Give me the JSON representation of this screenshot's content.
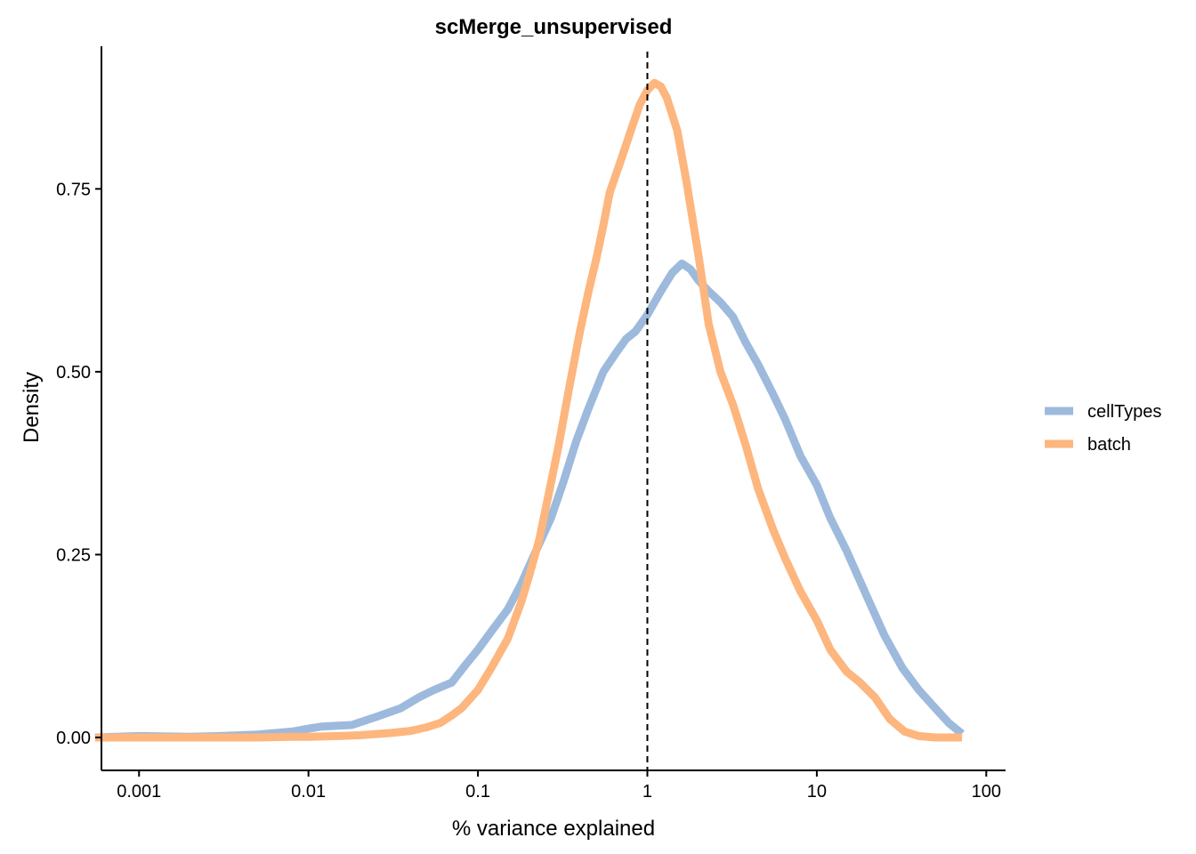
{
  "chart_data": {
    "type": "line",
    "title": "scMerge_unsupervised",
    "xlabel": "% variance explained",
    "ylabel": "Density",
    "x_scale": "log10",
    "xlim": [
      0.0006,
      130
    ],
    "ylim": [
      -0.045,
      0.945
    ],
    "x_ticks": [
      0.001,
      0.01,
      0.1,
      1,
      10,
      100
    ],
    "x_tick_labels": [
      "0.001",
      "0.01",
      "0.1",
      "1",
      "10",
      "100"
    ],
    "y_ticks": [
      0,
      0.25,
      0.5,
      0.75
    ],
    "y_tick_labels": [
      "0.00",
      "0.25",
      "0.50",
      "0.75"
    ],
    "reference_line": {
      "x": 1,
      "style": "dashed"
    },
    "grid": false,
    "legend_position": "right",
    "series": [
      {
        "name": "cellTypes",
        "color": "#9dbadc",
        "x": [
          0.00055,
          0.001,
          0.002,
          0.003,
          0.005,
          0.008,
          0.01,
          0.012,
          0.018,
          0.025,
          0.035,
          0.045,
          0.055,
          0.07,
          0.085,
          0.1,
          0.12,
          0.15,
          0.18,
          0.22,
          0.27,
          0.32,
          0.38,
          0.45,
          0.55,
          0.65,
          0.75,
          0.85,
          1.0,
          1.2,
          1.4,
          1.6,
          1.8,
          2.0,
          2.3,
          2.7,
          3.2,
          3.8,
          4.5,
          5.5,
          6.5,
          8.0,
          10.0,
          12.0,
          15.0,
          20.0,
          25.0,
          32.0,
          40.0,
          50.0,
          60.0,
          72.0
        ],
        "values": [
          0.0,
          0.002,
          0.001,
          0.002,
          0.004,
          0.008,
          0.012,
          0.015,
          0.017,
          0.028,
          0.04,
          0.055,
          0.065,
          0.075,
          0.1,
          0.12,
          0.145,
          0.175,
          0.21,
          0.255,
          0.3,
          0.35,
          0.405,
          0.45,
          0.5,
          0.525,
          0.545,
          0.555,
          0.578,
          0.61,
          0.635,
          0.648,
          0.64,
          0.625,
          0.61,
          0.595,
          0.575,
          0.54,
          0.51,
          0.47,
          0.435,
          0.385,
          0.345,
          0.3,
          0.255,
          0.19,
          0.14,
          0.095,
          0.065,
          0.04,
          0.02,
          0.005
        ]
      },
      {
        "name": "batch",
        "color": "#fdb67e",
        "x": [
          0.00055,
          0.001,
          0.003,
          0.005,
          0.008,
          0.01,
          0.015,
          0.02,
          0.03,
          0.04,
          0.05,
          0.06,
          0.07,
          0.08,
          0.1,
          0.12,
          0.15,
          0.18,
          0.2,
          0.23,
          0.26,
          0.3,
          0.35,
          0.4,
          0.45,
          0.5,
          0.55,
          0.6,
          0.7,
          0.8,
          0.9,
          1.0,
          1.1,
          1.2,
          1.3,
          1.5,
          1.7,
          2.0,
          2.3,
          2.7,
          3.2,
          3.8,
          4.5,
          5.5,
          6.5,
          8.0,
          10.0,
          12.0,
          15.0,
          18.0,
          22.0,
          27.0,
          33.0,
          40.0,
          50.0,
          60.0,
          72.0
        ],
        "values": [
          0.0,
          0.0,
          0.0,
          0.0,
          0.001,
          0.001,
          0.002,
          0.003,
          0.006,
          0.009,
          0.014,
          0.02,
          0.03,
          0.04,
          0.065,
          0.095,
          0.135,
          0.185,
          0.22,
          0.27,
          0.33,
          0.4,
          0.485,
          0.555,
          0.61,
          0.655,
          0.7,
          0.745,
          0.79,
          0.83,
          0.865,
          0.885,
          0.895,
          0.89,
          0.875,
          0.83,
          0.76,
          0.66,
          0.565,
          0.5,
          0.455,
          0.4,
          0.34,
          0.285,
          0.245,
          0.2,
          0.16,
          0.12,
          0.09,
          0.075,
          0.055,
          0.025,
          0.008,
          0.002,
          0.0,
          0.0,
          0.0
        ]
      }
    ]
  }
}
